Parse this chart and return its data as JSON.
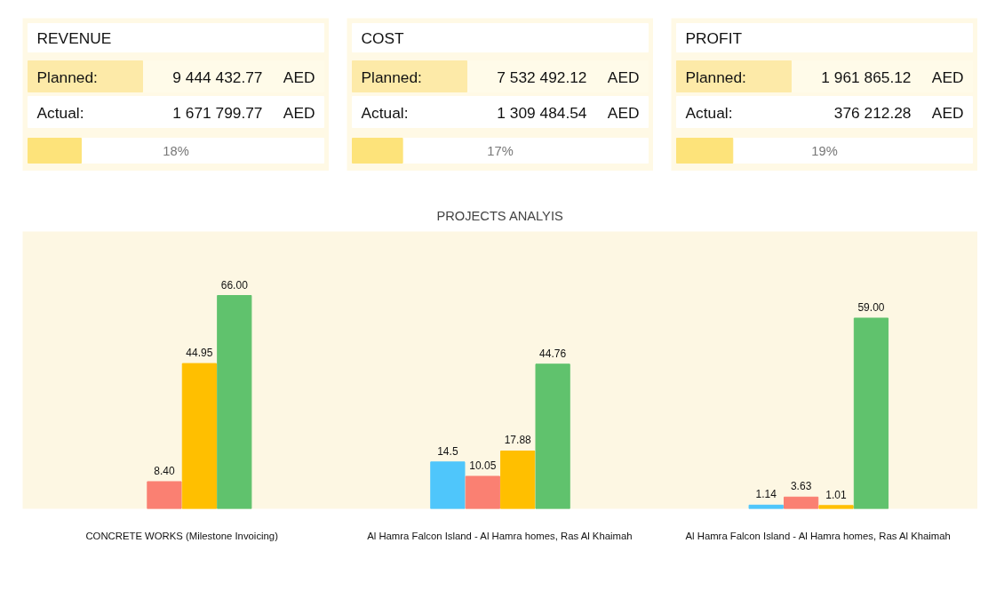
{
  "chart_data": [
    {
      "type": "other",
      "title": "REVENUE",
      "annotations": [
        "Planned:",
        "9 444 432.77",
        "AED",
        "Actual:",
        "1 671 799.77",
        "AED"
      ],
      "values": [
        18
      ],
      "value_labels": [
        "18%"
      ]
    },
    {
      "type": "other",
      "title": "COST",
      "annotations": [
        "Planned:",
        "7 532 492.12",
        "AED",
        "Actual:",
        "1 309 484.54",
        "AED"
      ],
      "values": [
        17
      ],
      "value_labels": [
        "17%"
      ]
    },
    {
      "type": "other",
      "title": "PROFIT",
      "annotations": [
        "Planned:",
        "1 961 865.12",
        "AED",
        "Actual:",
        "376 212.28",
        "AED"
      ],
      "values": [
        19
      ],
      "value_labels": [
        "19%"
      ]
    },
    {
      "type": "bar",
      "title": "PROJECTS ANALYIS",
      "categories": [
        "CONCRETE WORKS (Milestone Invoicing)",
        "Al Hamra Falcon Island - Al Hamra homes, Ras Al Khaimah",
        "Al Hamra Falcon Island - Al Hamra homes, Ras Al Khaimah"
      ],
      "series": [
        {
          "color": "#4fc6fb",
          "values": [
            null,
            14.5,
            1.14
          ],
          "value_labels": [
            null,
            "14.5",
            "1.14"
          ]
        },
        {
          "color": "#fa8072",
          "values": [
            8.4,
            10.05,
            3.63
          ],
          "value_labels": [
            "8.40",
            "10.05",
            "3.63"
          ]
        },
        {
          "color": "#ffbf00",
          "values": [
            44.95,
            17.88,
            1.01
          ],
          "value_labels": [
            "44.95",
            "17.88",
            "1.01"
          ]
        },
        {
          "color": "#60c26d",
          "values": [
            66.0,
            44.76,
            59.0
          ],
          "value_labels": [
            "66.00",
            "44.76",
            "59.00"
          ]
        }
      ]
    }
  ]
}
